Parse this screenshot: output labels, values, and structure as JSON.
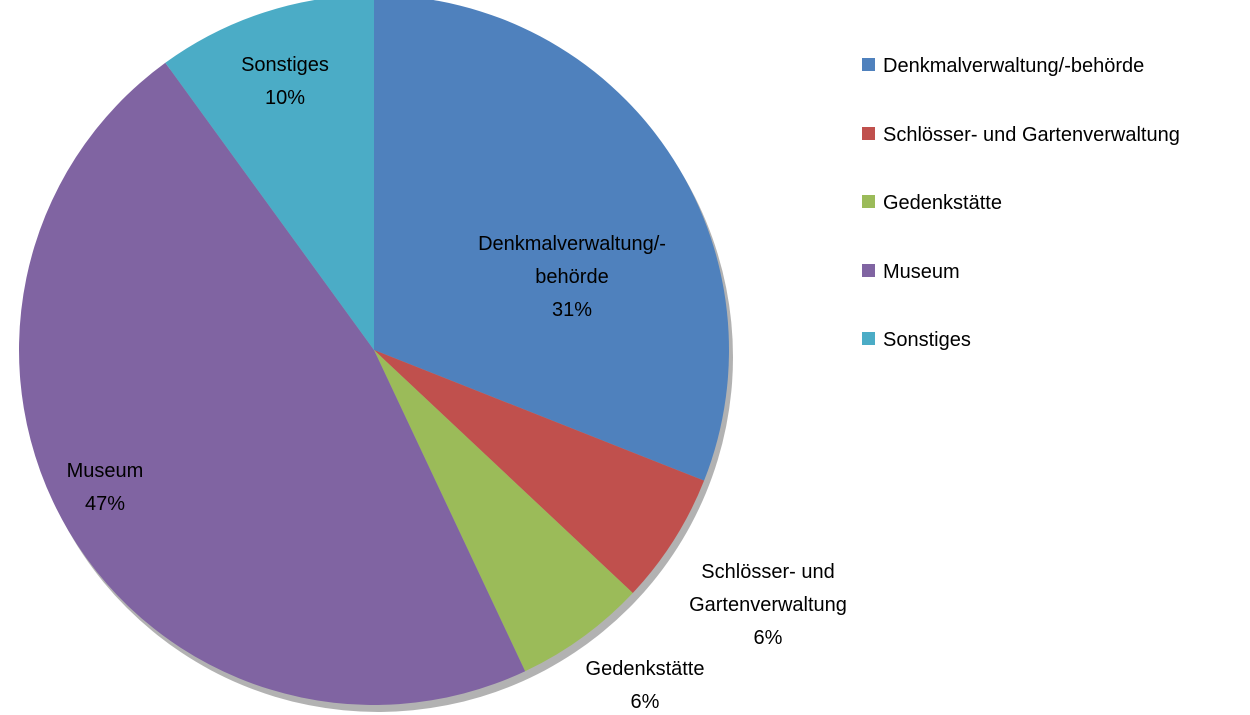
{
  "chart_data": {
    "type": "pie",
    "categories": [
      "Denkmalverwaltung/-behörde",
      "Schlösser- und Gartenverwaltung",
      "Gedenkstätte",
      "Museum",
      "Sonstiges"
    ],
    "values": [
      31,
      6,
      6,
      47,
      10
    ],
    "value_labels": [
      "31%",
      "6%",
      "6%",
      "47%",
      "10%"
    ],
    "colors": [
      "#4f81bd",
      "#c0504d",
      "#9bbb59",
      "#8064a2",
      "#4bacc6"
    ],
    "legend": "right"
  }
}
